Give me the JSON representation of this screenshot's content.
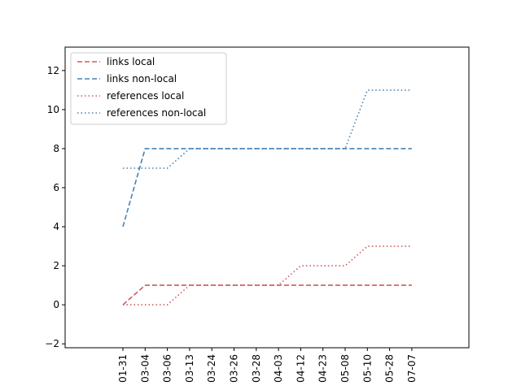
{
  "chart_data": {
    "type": "line",
    "categories": [
      "01-31",
      "03-04",
      "03-06",
      "03-13",
      "03-24",
      "03-26",
      "03-28",
      "04-03",
      "04-12",
      "04-23",
      "05-08",
      "05-10",
      "05-28",
      "07-07"
    ],
    "series": [
      {
        "name": "links local",
        "color": "#cd5c5c",
        "style": "dashed",
        "values": [
          0,
          1,
          1,
          1,
          1,
          1,
          1,
          1,
          1,
          1,
          1,
          1,
          1,
          1
        ]
      },
      {
        "name": "links non-local",
        "color": "#4682b4",
        "style": "dashed",
        "values": [
          4,
          8,
          8,
          8,
          8,
          8,
          8,
          8,
          8,
          8,
          8,
          8,
          8,
          8
        ]
      },
      {
        "name": "references local",
        "color": "#cd5c5c",
        "style": "dotted",
        "values": [
          0,
          0,
          0,
          1,
          1,
          1,
          1,
          1,
          2,
          2,
          2,
          3,
          3,
          3
        ]
      },
      {
        "name": "references non-local",
        "color": "#4682b4",
        "style": "dotted",
        "values": [
          7,
          7,
          7,
          8,
          8,
          8,
          8,
          8,
          8,
          8,
          8,
          11,
          11,
          11
        ]
      }
    ],
    "yticks": [
      -2,
      0,
      2,
      4,
      6,
      8,
      10,
      12
    ],
    "ylim": [
      -2.2,
      13.2
    ],
    "grid": false,
    "legend_position": "top-left",
    "title": "",
    "xlabel": "",
    "ylabel": ""
  }
}
